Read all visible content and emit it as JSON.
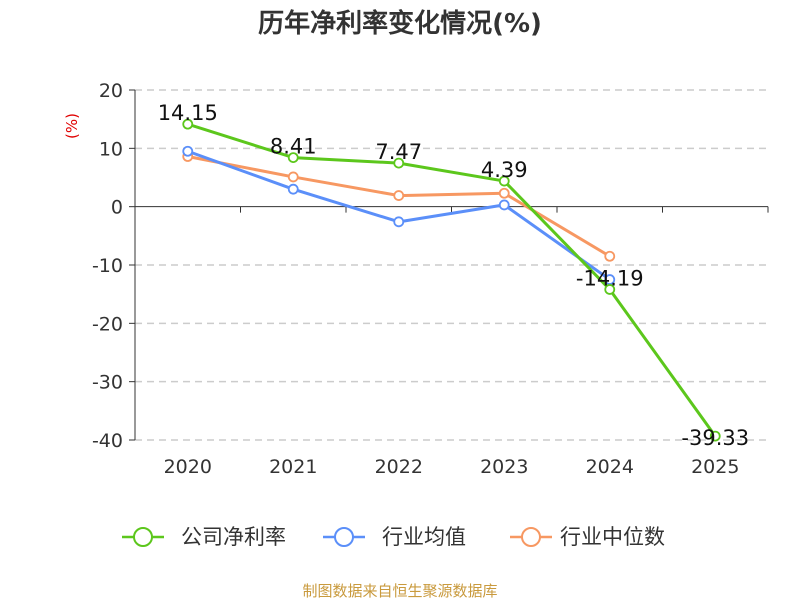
{
  "chart_data": {
    "type": "line",
    "title": "历年净利率变化情况(%)",
    "ylabel": "(%)",
    "xlabel": "",
    "categories": [
      "2020",
      "2021",
      "2022",
      "2023",
      "2024",
      "2025"
    ],
    "ylim": [
      -40,
      20
    ],
    "yticks": [
      20,
      10,
      0,
      -10,
      -20,
      -30,
      -40
    ],
    "grid": true,
    "legend_position": "bottom",
    "series": [
      {
        "name": "公司净利率",
        "color": "#5cc71c",
        "values": [
          14.15,
          8.41,
          7.47,
          4.39,
          -14.19,
          -39.33
        ],
        "labels": [
          "14.15",
          "8.41",
          "7.47",
          "4.39",
          "-14.19",
          "-39.33"
        ]
      },
      {
        "name": "行业均值",
        "color": "#5b8ff9",
        "values": [
          9.5,
          3.0,
          -2.6,
          0.3,
          -12.5,
          null
        ]
      },
      {
        "name": "行业中位数",
        "color": "#f79862",
        "values": [
          8.6,
          5.1,
          1.9,
          2.3,
          -8.5,
          null
        ]
      }
    ]
  },
  "source_text": "制图数据来自恒生聚源数据库"
}
